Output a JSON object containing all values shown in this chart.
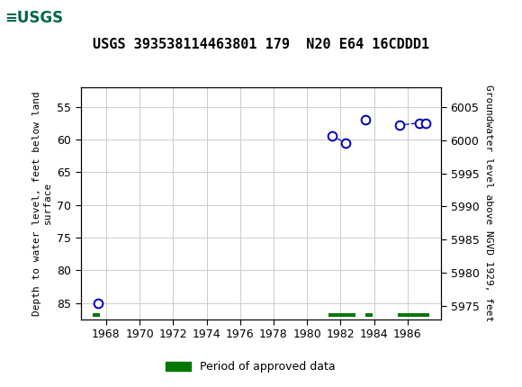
{
  "title": "USGS 393538114463801 179  N20 E64 16CDDD1",
  "ylabel_left": "Depth to water level, feet below land\nsurface",
  "ylabel_right": "Groundwater level above NGVD 1929, feet",
  "header_bg": "#006644",
  "plot_bg": "#ffffff",
  "grid_color": "#cccccc",
  "data_points": [
    {
      "year": 1967.5,
      "depth": 85.0
    },
    {
      "year": 1981.5,
      "depth": 59.5
    },
    {
      "year": 1982.3,
      "depth": 60.5
    },
    {
      "year": 1983.5,
      "depth": 57.0
    },
    {
      "year": 1985.5,
      "depth": 57.8
    },
    {
      "year": 1986.7,
      "depth": 57.5
    },
    {
      "year": 1987.1,
      "depth": 57.5
    }
  ],
  "connected_segments": [
    {
      "years": [
        1981.5,
        1982.3
      ],
      "depths": [
        59.5,
        60.5
      ]
    },
    {
      "years": [
        1985.5,
        1986.7,
        1987.1
      ],
      "depths": [
        57.8,
        57.5,
        57.5
      ]
    }
  ],
  "xlim": [
    1966.5,
    1988.0
  ],
  "xticks": [
    1968,
    1970,
    1972,
    1974,
    1976,
    1978,
    1980,
    1982,
    1984,
    1986
  ],
  "ylim_left": [
    87.5,
    52.0
  ],
  "ylim_right": [
    5973.0,
    6008.0
  ],
  "yticks_left": [
    85,
    80,
    75,
    70,
    65,
    60,
    55
  ],
  "yticks_right": [
    5975,
    5980,
    5985,
    5990,
    5995,
    6000,
    6005
  ],
  "marker_color": "#0000bb",
  "marker_size": 7,
  "line_color": "#0000bb",
  "approved_bars": [
    {
      "start": 1967.2,
      "end": 1967.65
    },
    {
      "start": 1981.3,
      "end": 1982.9
    },
    {
      "start": 1983.5,
      "end": 1983.9
    },
    {
      "start": 1985.4,
      "end": 1987.3
    }
  ],
  "approved_color": "#007700",
  "bar_y": 86.8,
  "bar_height": 0.55,
  "legend_label": "Period of approved data",
  "title_fontsize": 11,
  "tick_fontsize": 9,
  "ylabel_fontsize": 8
}
